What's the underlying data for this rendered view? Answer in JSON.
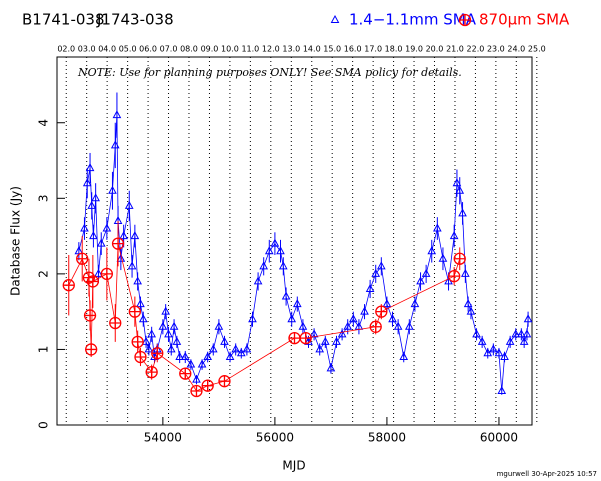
{
  "chart_data": {
    "type": "scatter",
    "title": "B1741-038",
    "subtitle": "J1743-038",
    "annotation": "NOTE: Use for planning purposes ONLY!  See SMA policy for details.",
    "footer": "mgurwell 30-Apr-2025 10:57",
    "xlabel": "MJD",
    "ylabel": "Database Flux (Jy)",
    "xlim": [
      52110,
      60590
    ],
    "ylim": [
      0,
      4.87
    ],
    "xticks": [
      54000,
      56000,
      58000,
      60000
    ],
    "yticks": [
      0,
      1,
      2,
      3,
      4
    ],
    "x2ticks": [
      {
        "value": 52275,
        "label": "02.0"
      },
      {
        "value": 52640,
        "label": "03.0"
      },
      {
        "value": 53005,
        "label": "04.0"
      },
      {
        "value": 53371,
        "label": "05.0"
      },
      {
        "value": 53736,
        "label": "06.0"
      },
      {
        "value": 54101,
        "label": "07.0"
      },
      {
        "value": 54466,
        "label": "08.0"
      },
      {
        "value": 54832,
        "label": "09.0"
      },
      {
        "value": 55197,
        "label": "10.0"
      },
      {
        "value": 55562,
        "label": "11.0"
      },
      {
        "value": 55927,
        "label": "12.0"
      },
      {
        "value": 56293,
        "label": "13.0"
      },
      {
        "value": 56658,
        "label": "14.0"
      },
      {
        "value": 57023,
        "label": "15.0"
      },
      {
        "value": 57388,
        "label": "16.0"
      },
      {
        "value": 57754,
        "label": "17.0"
      },
      {
        "value": 58119,
        "label": "18.0"
      },
      {
        "value": 58484,
        "label": "19.0"
      },
      {
        "value": 58849,
        "label": "20.0"
      },
      {
        "value": 59215,
        "label": "21.0"
      },
      {
        "value": 59580,
        "label": "22.0"
      },
      {
        "value": 59945,
        "label": "23.0"
      },
      {
        "value": 60310,
        "label": "24.0"
      },
      {
        "value": 60676,
        "label": "25.0"
      }
    ],
    "series": [
      {
        "name": "1.4−1.1mm SMA",
        "color": "#0000ff",
        "marker": "triangle",
        "x": [
          52500,
          52600,
          52650,
          52700,
          52730,
          52760,
          52800,
          52850,
          52900,
          53000,
          53100,
          53150,
          53180,
          53200,
          53250,
          53300,
          53400,
          53450,
          53500,
          53550,
          53600,
          53650,
          53700,
          53750,
          53800,
          53850,
          53900,
          54000,
          54050,
          54100,
          54150,
          54200,
          54250,
          54300,
          54400,
          54500,
          54600,
          54700,
          54800,
          54900,
          55000,
          55100,
          55200,
          55300,
          55400,
          55500,
          55600,
          55700,
          55800,
          55900,
          56000,
          56100,
          56150,
          56200,
          56300,
          56400,
          56500,
          56600,
          56700,
          56800,
          56900,
          57000,
          57100,
          57200,
          57300,
          57400,
          57500,
          57600,
          57700,
          57800,
          57900,
          58000,
          58100,
          58200,
          58300,
          58400,
          58500,
          58600,
          58700,
          58800,
          58900,
          59000,
          59100,
          59200,
          59250,
          59300,
          59350,
          59400,
          59450,
          59500,
          59600,
          59700,
          59800,
          59900,
          60000,
          60050,
          60100,
          60200,
          60300,
          60400,
          60450,
          60500,
          60520
        ],
        "values": [
          2.3,
          2.6,
          3.2,
          3.4,
          2.9,
          2.5,
          3.0,
          2.0,
          2.4,
          2.6,
          3.1,
          3.7,
          4.1,
          2.7,
          2.2,
          2.5,
          2.9,
          2.1,
          2.5,
          1.9,
          1.6,
          1.4,
          1.1,
          1.0,
          1.2,
          0.9,
          1.0,
          1.3,
          1.5,
          1.2,
          1.0,
          1.3,
          1.1,
          0.9,
          0.9,
          0.8,
          0.6,
          0.8,
          0.9,
          1.0,
          1.3,
          1.1,
          0.9,
          1.0,
          0.95,
          1.0,
          1.4,
          1.9,
          2.1,
          2.3,
          2.4,
          2.3,
          2.1,
          1.7,
          1.4,
          1.6,
          1.3,
          1.1,
          1.2,
          1.0,
          1.1,
          0.75,
          1.1,
          1.2,
          1.3,
          1.4,
          1.3,
          1.5,
          1.8,
          2.0,
          2.1,
          1.6,
          1.4,
          1.3,
          0.9,
          1.3,
          1.6,
          1.9,
          2.0,
          2.3,
          2.6,
          2.2,
          1.9,
          2.5,
          3.2,
          3.1,
          2.8,
          2.0,
          1.6,
          1.5,
          1.2,
          1.1,
          0.95,
          1.0,
          0.95,
          0.45,
          0.9,
          1.1,
          1.2,
          1.2,
          1.1,
          1.2,
          1.4
        ],
        "errors": [
          0.12,
          0.15,
          0.2,
          0.2,
          0.18,
          0.15,
          0.2,
          0.12,
          0.15,
          0.15,
          0.25,
          0.3,
          0.3,
          0.2,
          0.15,
          0.15,
          0.2,
          0.15,
          0.15,
          0.12,
          0.1,
          0.1,
          0.08,
          0.08,
          0.1,
          0.08,
          0.08,
          0.1,
          0.1,
          0.1,
          0.08,
          0.1,
          0.08,
          0.08,
          0.08,
          0.07,
          0.06,
          0.07,
          0.07,
          0.08,
          0.1,
          0.08,
          0.07,
          0.08,
          0.07,
          0.08,
          0.1,
          0.12,
          0.12,
          0.15,
          0.15,
          0.15,
          0.12,
          0.12,
          0.1,
          0.1,
          0.1,
          0.08,
          0.08,
          0.08,
          0.08,
          0.07,
          0.08,
          0.08,
          0.1,
          0.1,
          0.1,
          0.1,
          0.12,
          0.12,
          0.12,
          0.1,
          0.1,
          0.1,
          0.07,
          0.1,
          0.1,
          0.12,
          0.12,
          0.15,
          0.15,
          0.15,
          0.12,
          0.15,
          0.18,
          0.18,
          0.15,
          0.12,
          0.1,
          0.1,
          0.08,
          0.08,
          0.07,
          0.08,
          0.07,
          0.05,
          0.07,
          0.08,
          0.08,
          0.08,
          0.08,
          0.08,
          0.1
        ]
      },
      {
        "name": "870μm SMA",
        "color": "#ff0000",
        "marker": "circle-plus",
        "x": [
          52320,
          52560,
          52680,
          52700,
          52720,
          52750,
          53000,
          53150,
          53200,
          53500,
          53550,
          53600,
          53800,
          53900,
          54400,
          54600,
          54800,
          55100,
          56350,
          56550,
          57800,
          57900,
          59200,
          59300
        ],
        "values": [
          1.85,
          2.2,
          1.95,
          1.45,
          1.0,
          1.9,
          2.0,
          1.35,
          2.4,
          1.5,
          1.1,
          0.9,
          0.7,
          0.95,
          0.68,
          0.45,
          0.52,
          0.58,
          1.15,
          1.15,
          1.3,
          1.5,
          1.97,
          2.2
        ],
        "errors": [
          0.4,
          0.3,
          0.25,
          0.2,
          0.1,
          0.35,
          0.35,
          0.25,
          0.3,
          0.2,
          0.15,
          0.12,
          0.1,
          0.12,
          0.08,
          0.05,
          0.06,
          0.06,
          0.08,
          0.08,
          0.1,
          0.1,
          0.12,
          0.15
        ]
      }
    ]
  }
}
